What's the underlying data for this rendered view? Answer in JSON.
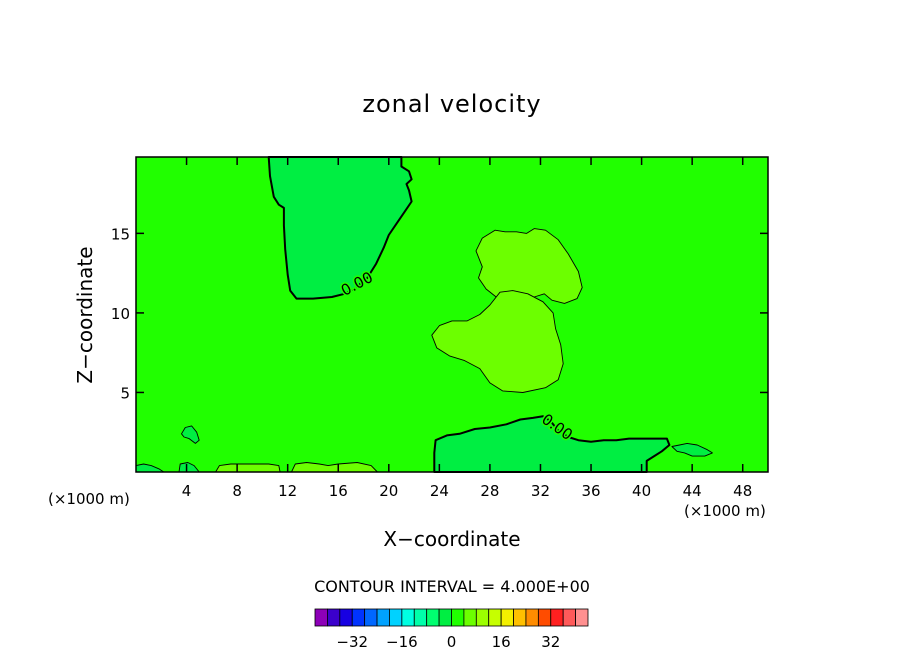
{
  "chart_data": {
    "type": "contour",
    "title": "zonal velocity",
    "xlabel": "X−coordinate",
    "ylabel": "Z−coordinate",
    "x_unit_left": "(×1000 m)",
    "x_unit_right": "(×1000 m)",
    "xlim": [
      0,
      50
    ],
    "ylim": [
      0,
      19.8
    ],
    "x_ticks": [
      4,
      8,
      12,
      16,
      20,
      24,
      28,
      32,
      36,
      40,
      44,
      48
    ],
    "y_ticks": [
      5,
      10,
      15
    ],
    "contour_interval_text": "CONTOUR INTERVAL = 4.000E+00",
    "contour_labels": [
      {
        "text": "0.00",
        "x": 17.5,
        "y": 11.8,
        "angle": -28
      },
      {
        "text": "0.00",
        "x": 33.3,
        "y": 2.8,
        "angle": 35
      }
    ],
    "field_colors": {
      "background": "#21ff00",
      "negative": "#00ee42",
      "positive": "#6cff00"
    },
    "regions": [
      {
        "name": "negative-upper-left",
        "sign": "negative",
        "level": "0.00",
        "points": [
          [
            10.5,
            19.8
          ],
          [
            10.6,
            18.6
          ],
          [
            10.9,
            17.3
          ],
          [
            11.3,
            16.8
          ],
          [
            11.7,
            16.6
          ],
          [
            11.7,
            15.5
          ],
          [
            11.8,
            14.0
          ],
          [
            12.0,
            12.4
          ],
          [
            12.2,
            11.4
          ],
          [
            12.7,
            10.9
          ],
          [
            14.0,
            10.9
          ],
          [
            15.5,
            11.0
          ],
          [
            16.5,
            11.2
          ],
          [
            17.4,
            11.6
          ],
          [
            18.3,
            12.2
          ],
          [
            19.0,
            13.1
          ],
          [
            19.6,
            14.1
          ],
          [
            20.0,
            14.9
          ],
          [
            20.6,
            15.6
          ],
          [
            21.2,
            16.3
          ],
          [
            21.8,
            17.0
          ],
          [
            21.6,
            17.7
          ],
          [
            21.4,
            18.1
          ],
          [
            21.8,
            18.4
          ],
          [
            21.6,
            18.9
          ],
          [
            21.0,
            19.2
          ],
          [
            21.0,
            19.8
          ]
        ]
      },
      {
        "name": "positive-upper",
        "sign": "positive",
        "level": "",
        "points": [
          [
            27.4,
            12.9
          ],
          [
            26.9,
            13.9
          ],
          [
            27.4,
            14.7
          ],
          [
            28.4,
            15.2
          ],
          [
            29.2,
            15.1
          ],
          [
            30.1,
            15.1
          ],
          [
            30.9,
            15.0
          ],
          [
            31.5,
            15.3
          ],
          [
            32.4,
            15.2
          ],
          [
            33.4,
            14.6
          ],
          [
            34.2,
            13.7
          ],
          [
            35.0,
            12.6
          ],
          [
            35.3,
            11.6
          ],
          [
            34.9,
            10.9
          ],
          [
            33.9,
            10.6
          ],
          [
            32.9,
            10.8
          ],
          [
            32.3,
            11.2
          ],
          [
            31.5,
            11.0
          ],
          [
            30.5,
            10.9
          ],
          [
            29.5,
            10.9
          ],
          [
            28.5,
            11.0
          ],
          [
            27.7,
            11.5
          ],
          [
            27.1,
            12.2
          ]
        ]
      },
      {
        "name": "positive-middle",
        "sign": "positive",
        "level": "",
        "points": [
          [
            23.4,
            8.6
          ],
          [
            24.0,
            9.2
          ],
          [
            25.0,
            9.5
          ],
          [
            26.2,
            9.5
          ],
          [
            27.2,
            9.9
          ],
          [
            28.0,
            10.5
          ],
          [
            28.8,
            11.3
          ],
          [
            29.8,
            11.4
          ],
          [
            31.0,
            11.2
          ],
          [
            32.2,
            10.7
          ],
          [
            33.0,
            10.0
          ],
          [
            33.2,
            9.0
          ],
          [
            33.6,
            8.0
          ],
          [
            33.8,
            6.8
          ],
          [
            33.4,
            5.8
          ],
          [
            32.4,
            5.3
          ],
          [
            30.6,
            5.0
          ],
          [
            29.0,
            5.1
          ],
          [
            28.0,
            5.6
          ],
          [
            27.2,
            6.5
          ],
          [
            26.0,
            7.0
          ],
          [
            24.8,
            7.3
          ],
          [
            23.8,
            7.8
          ]
        ]
      },
      {
        "name": "negative-bottom-middle",
        "sign": "negative",
        "level": "0.00",
        "points": [
          [
            23.6,
            0.0
          ],
          [
            23.6,
            1.2
          ],
          [
            23.7,
            2.0
          ],
          [
            24.6,
            2.3
          ],
          [
            25.6,
            2.4
          ],
          [
            26.8,
            2.7
          ],
          [
            28.0,
            2.8
          ],
          [
            29.3,
            3.0
          ],
          [
            30.4,
            3.3
          ],
          [
            31.4,
            3.4
          ],
          [
            32.2,
            3.5
          ],
          [
            32.8,
            3.2
          ],
          [
            33.4,
            2.6
          ],
          [
            34.2,
            2.2
          ],
          [
            35.0,
            2.0
          ],
          [
            36.0,
            1.9
          ],
          [
            37.0,
            2.0
          ],
          [
            38.0,
            2.0
          ],
          [
            39.0,
            2.1
          ],
          [
            40.0,
            2.1
          ],
          [
            41.0,
            2.1
          ],
          [
            42.0,
            2.1
          ],
          [
            42.2,
            1.7
          ],
          [
            41.6,
            1.3
          ],
          [
            41.0,
            1.0
          ],
          [
            40.4,
            0.7
          ],
          [
            40.4,
            0.0
          ]
        ]
      },
      {
        "name": "positive-bottom-left",
        "sign": "positive",
        "level": "",
        "points": [
          [
            6.3,
            0.0
          ],
          [
            6.6,
            0.4
          ],
          [
            7.5,
            0.5
          ],
          [
            9.0,
            0.5
          ],
          [
            10.5,
            0.5
          ],
          [
            11.3,
            0.4
          ],
          [
            11.4,
            0.0
          ]
        ]
      },
      {
        "name": "positive-bottom-center",
        "sign": "positive",
        "level": "",
        "points": [
          [
            12.3,
            0.0
          ],
          [
            12.6,
            0.5
          ],
          [
            13.5,
            0.6
          ],
          [
            14.5,
            0.5
          ],
          [
            15.2,
            0.4
          ],
          [
            16.0,
            0.5
          ],
          [
            17.5,
            0.6
          ],
          [
            18.6,
            0.4
          ],
          [
            19.1,
            0.0
          ]
        ]
      },
      {
        "name": "negative-small-left",
        "sign": "negative",
        "level": "",
        "points": [
          [
            3.6,
            2.4
          ],
          [
            3.9,
            2.8
          ],
          [
            4.4,
            2.9
          ],
          [
            4.8,
            2.5
          ],
          [
            5.0,
            2.0
          ],
          [
            4.7,
            1.8
          ],
          [
            4.2,
            2.1
          ],
          [
            3.8,
            2.2
          ]
        ]
      },
      {
        "name": "negative-small-right",
        "sign": "negative",
        "level": "",
        "points": [
          [
            42.4,
            1.6
          ],
          [
            43.0,
            1.7
          ],
          [
            43.6,
            1.8
          ],
          [
            44.4,
            1.7
          ],
          [
            45.2,
            1.4
          ],
          [
            45.6,
            1.2
          ],
          [
            45.0,
            1.0
          ],
          [
            44.0,
            1.0
          ],
          [
            43.4,
            1.2
          ],
          [
            42.8,
            1.3
          ]
        ]
      },
      {
        "name": "negative-bottom-left-edge",
        "sign": "negative",
        "level": "",
        "points": [
          [
            0.0,
            0.0
          ],
          [
            0.0,
            0.4
          ],
          [
            0.6,
            0.5
          ],
          [
            1.2,
            0.4
          ],
          [
            1.8,
            0.2
          ],
          [
            2.2,
            0.0
          ]
        ]
      },
      {
        "name": "negative-bottom-mid-edge",
        "sign": "negative",
        "level": "",
        "points": [
          [
            3.4,
            0.0
          ],
          [
            3.5,
            0.5
          ],
          [
            4.1,
            0.6
          ],
          [
            4.6,
            0.4
          ],
          [
            5.0,
            0.0
          ]
        ]
      }
    ],
    "colorbar": {
      "colors": [
        "#8d00b8",
        "#3b00cc",
        "#1700e2",
        "#0033ff",
        "#0067ff",
        "#00a2ff",
        "#00d2ff",
        "#00ffe2",
        "#00ffaa",
        "#00ff70",
        "#00ee42",
        "#21ff00",
        "#6cff00",
        "#9cff00",
        "#c6ff00",
        "#f3f000",
        "#ffc000",
        "#ff8c00",
        "#ff4c00",
        "#ff2020",
        "#ff5a5a",
        "#ff9090"
      ],
      "tick_values": [
        -32,
        -16,
        0,
        16,
        32
      ],
      "tick_labels": [
        "−32",
        "−16",
        "0",
        "16",
        "32"
      ]
    }
  }
}
